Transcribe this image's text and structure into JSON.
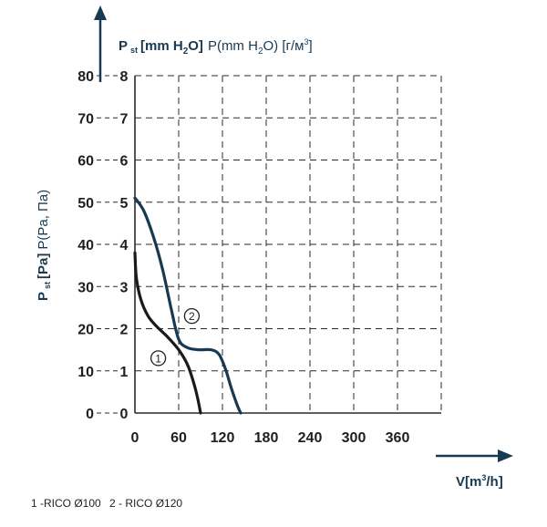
{
  "chart_data": {
    "type": "line",
    "y_axis_title": {
      "bold": "P",
      "bold_sub": "st",
      "bold_unit": "[Pa]",
      "rest": "P(Pa, Па)"
    },
    "y2_axis_title": {
      "bold": "P",
      "bold_sub": "st",
      "bold_unit_main": "[mm H",
      "bold_unit_sub": "2",
      "bold_unit_end": "O]",
      "rest_main": "P(mm H",
      "rest_sub": "2",
      "rest_mid": "O) [г/м",
      "rest_sup": "3",
      "rest_end": "]"
    },
    "x_axis_title": {
      "main": "V[m",
      "sup": "3",
      "end": "/h]"
    },
    "x_ticks": [
      "0",
      "60",
      "120",
      "180",
      "240",
      "300",
      "360"
    ],
    "y_pa_ticks": [
      "0",
      "10",
      "20",
      "30",
      "40",
      "50",
      "60",
      "70",
      "80"
    ],
    "y_mm_ticks": [
      "0",
      "1",
      "2",
      "3",
      "4",
      "5",
      "6",
      "7",
      "8"
    ],
    "xlim": [
      0,
      420
    ],
    "ylim": [
      0,
      80
    ],
    "grid": true,
    "series": [
      {
        "label": "1",
        "color": "#1a1a1a",
        "points": [
          [
            0,
            38
          ],
          [
            2,
            32
          ],
          [
            8,
            27
          ],
          [
            18,
            23
          ],
          [
            30,
            20.5
          ],
          [
            45,
            18
          ],
          [
            60,
            15
          ],
          [
            72,
            11.5
          ],
          [
            80,
            7.5
          ],
          [
            86,
            3.5
          ],
          [
            90,
            0
          ]
        ]
      },
      {
        "label": "2",
        "color": "#173a52",
        "points": [
          [
            0,
            51
          ],
          [
            12,
            48
          ],
          [
            25,
            42
          ],
          [
            38,
            34
          ],
          [
            50,
            24.5
          ],
          [
            60,
            17.5
          ],
          [
            72,
            15.5
          ],
          [
            88,
            15
          ],
          [
            104,
            15
          ],
          [
            115,
            14
          ],
          [
            124,
            10.5
          ],
          [
            132,
            6
          ],
          [
            140,
            2
          ],
          [
            145,
            0
          ]
        ]
      }
    ],
    "curve_labels": [
      {
        "text": "1",
        "x": 32,
        "y": 13
      },
      {
        "text": "2",
        "x": 78,
        "y": 23
      }
    ]
  },
  "legend": {
    "items": [
      "1 -RICO Ø100",
      "2 - RICO Ø120"
    ]
  },
  "colors": {
    "axis": "#173a52",
    "grid": "#2a2a2a",
    "text": "#1f1f1f"
  }
}
